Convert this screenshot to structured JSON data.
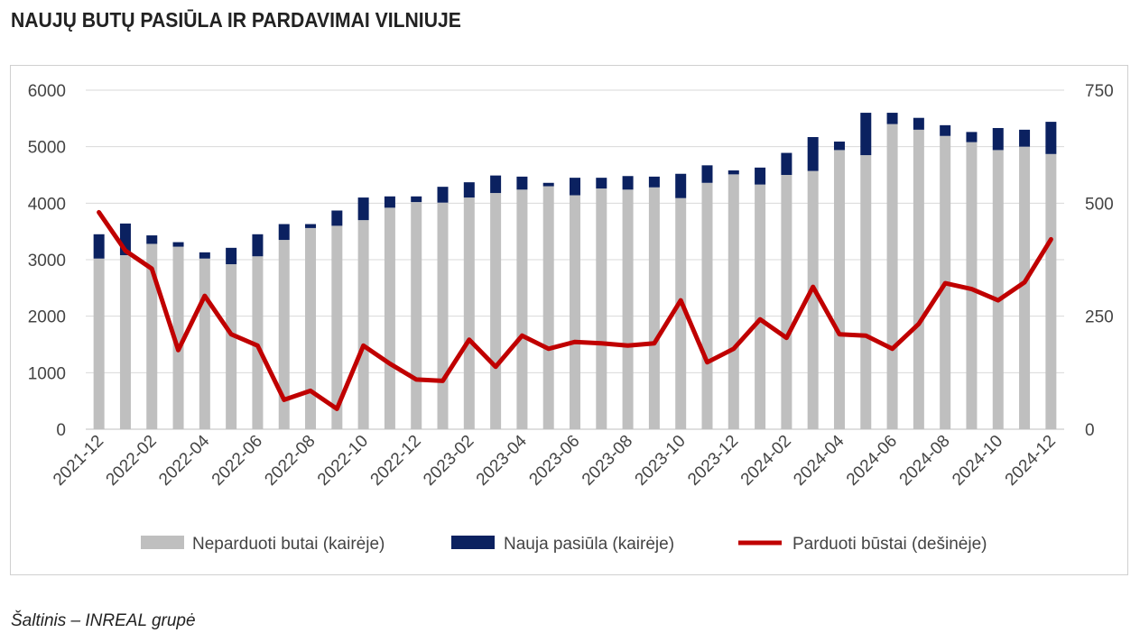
{
  "title": "NAUJŲ BUTŲ PASIŪLA IR PARDAVIMAI VILNIUJE",
  "source": "Šaltinis – INREAL grupė",
  "colors": {
    "unsold": "#bfbfbf",
    "new_supply": "#0b2160",
    "sold": "#c00000",
    "grid": "#d9d9d9"
  },
  "chart_data": {
    "type": "bar",
    "categories": [
      "2021-12",
      "2022-01",
      "2022-02",
      "2022-03",
      "2022-04",
      "2022-05",
      "2022-06",
      "2022-07",
      "2022-08",
      "2022-09",
      "2022-10",
      "2022-11",
      "2022-12",
      "2023-01",
      "2023-02",
      "2023-03",
      "2023-04",
      "2023-05",
      "2023-06",
      "2023-07",
      "2023-08",
      "2023-09",
      "2023-10",
      "2023-11",
      "2023-12",
      "2024-01",
      "2024-02",
      "2024-03",
      "2024-04",
      "2024-05",
      "2024-06",
      "2024-07",
      "2024-08",
      "2024-09",
      "2024-10",
      "2024-11",
      "2024-12"
    ],
    "x_tick_labels": [
      "2021-12",
      "2022-02",
      "2022-04",
      "2022-06",
      "2022-08",
      "2022-10",
      "2022-12",
      "2023-02",
      "2023-04",
      "2023-06",
      "2023-08",
      "2023-10",
      "2023-12",
      "2024-02",
      "2024-04",
      "2024-06",
      "2024-08",
      "2024-10",
      "2024-12"
    ],
    "left_axis": {
      "ylim": [
        0,
        6000
      ],
      "ticks": [
        "0",
        "1000",
        "2000",
        "3000",
        "4000",
        "5000",
        "6000"
      ]
    },
    "right_axis": {
      "ylim": [
        0,
        750
      ],
      "ticks": [
        "0",
        "250",
        "500",
        "750"
      ]
    },
    "series": [
      {
        "name": "Neparduoti butai (kairėje)",
        "type": "bar",
        "axis": "left",
        "stack": true,
        "values": [
          3020,
          3080,
          3280,
          3230,
          3020,
          2920,
          3060,
          3350,
          3560,
          3600,
          3700,
          3920,
          4020,
          4010,
          4100,
          4180,
          4240,
          4300,
          4140,
          4260,
          4240,
          4280,
          4090,
          4360,
          4510,
          4330,
          4500,
          4570,
          4940,
          4850,
          5400,
          5300,
          5190,
          5080,
          4940,
          5000,
          4870
        ]
      },
      {
        "name": "Nauja pasiūla (kairėje)",
        "type": "bar",
        "axis": "left",
        "stack": true,
        "values": [
          430,
          560,
          150,
          80,
          110,
          290,
          390,
          280,
          70,
          270,
          400,
          200,
          100,
          280,
          270,
          310,
          230,
          60,
          310,
          190,
          240,
          190,
          430,
          310,
          70,
          300,
          390,
          600,
          150,
          750,
          200,
          210,
          190,
          180,
          390,
          300,
          570
        ]
      },
      {
        "name": "Parduoti būstai (dešinėje)",
        "type": "line",
        "axis": "right",
        "values": [
          480,
          395,
          355,
          175,
          295,
          210,
          185,
          65,
          85,
          45,
          185,
          145,
          110,
          107,
          198,
          138,
          207,
          178,
          193,
          190,
          185,
          190,
          285,
          148,
          178,
          243,
          202,
          315,
          210,
          207,
          178,
          233,
          323,
          310,
          285,
          325,
          420
        ]
      }
    ],
    "legend_placement": "bottom",
    "grid": true
  }
}
